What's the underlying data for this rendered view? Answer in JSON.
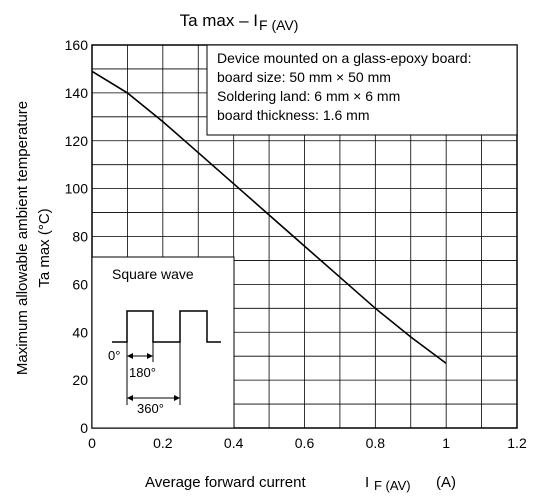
{
  "chart_data": {
    "type": "line",
    "title": "Ta max – I",
    "title_sub": "F (AV)",
    "xlabel": "Average forward current",
    "xlabel_symbol": "I",
    "xlabel_sub": "F (AV)",
    "xlabel_unit": "(A)",
    "ylabel_line1": "Maximum allowable ambient temperature",
    "ylabel_line2": "Ta max    (°C)",
    "xlim": [
      0,
      1.2
    ],
    "ylim": [
      0,
      160
    ],
    "xticks": [
      0,
      0.2,
      0.4,
      0.6,
      0.8,
      1,
      1.2
    ],
    "xtick_labels": [
      "0",
      "0.2",
      "0.4",
      "0.6",
      "0.8",
      "1",
      "1.2"
    ],
    "yticks": [
      0,
      20,
      40,
      60,
      80,
      100,
      120,
      140,
      160
    ],
    "ytick_labels": [
      "0",
      "20",
      "40",
      "60",
      "80",
      "100",
      "120",
      "140",
      "160"
    ],
    "x_minor_step": 0.1,
    "y_minor_step": 10,
    "grid": true,
    "series": [
      {
        "x": [
          0,
          0.1,
          0.2,
          0.3,
          0.4,
          0.5,
          0.6,
          0.7,
          0.8,
          0.9,
          1.0
        ],
        "y": [
          149,
          140,
          128,
          115,
          102,
          89,
          76,
          63,
          50,
          38,
          27
        ]
      }
    ],
    "annotation_lines": [
      "Device mounted on a glass-epoxy board:",
      "board size: 50 mm × 50 mm",
      "Soldering land: 6 mm × 6 mm",
      "board thickness: 1.6 mm"
    ],
    "inset": {
      "title": "Square wave",
      "label_0": "0°",
      "label_180": "180°",
      "label_360": "360°"
    }
  }
}
